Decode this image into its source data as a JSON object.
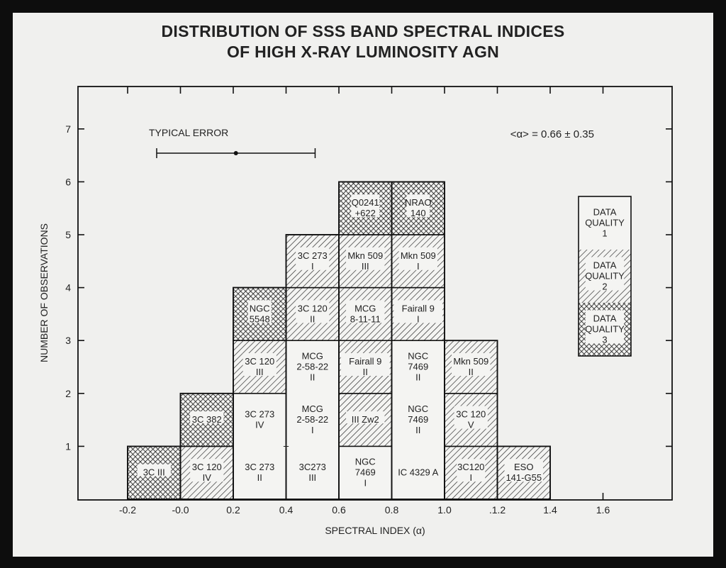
{
  "title_line1": "DISTRIBUTION OF SSS BAND SPECTRAL INDICES",
  "title_line2": "OF HIGH X-RAY LUMINOSITY AGN",
  "chart_data": {
    "type": "bar",
    "subtype": "stacked histogram of labeled observations",
    "xlabel": "SPECTRAL INDEX (α)",
    "ylabel": "NUMBER OF OBSERVATIONS",
    "xlim": [
      -0.3,
      1.95
    ],
    "ylim": [
      0,
      7.8
    ],
    "xticks": [
      "-0.2",
      "-0.0",
      "0.2",
      "0.4",
      "0.6",
      "0.8",
      "1.0",
      ".1.2",
      "1.4",
      "1.6"
    ],
    "xtick_values": [
      -0.2,
      0.0,
      0.2,
      0.4,
      0.6,
      0.8,
      1.0,
      1.2,
      1.4,
      1.6
    ],
    "yticks": [
      1,
      2,
      3,
      4,
      5,
      6,
      7
    ],
    "bin_width": 0.2,
    "grid": false,
    "annotation_mean": "<α> = 0.66 ± 0.35",
    "typical_error": {
      "label": "TYPICAL ERROR",
      "center": 0.21,
      "half_width": 0.3
    },
    "plus_marker": {
      "x": 0.4,
      "y": 1.0
    },
    "legend": {
      "placement": "right",
      "entries": [
        {
          "label": "DATA\nQUALITY\n1",
          "quality": 1
        },
        {
          "label": "DATA\nQUALITY\n2",
          "quality": 2
        },
        {
          "label": "DATA\nQUALITY\n3",
          "quality": 3
        }
      ]
    },
    "quality_fills": {
      "1": "blank",
      "2": "diagonal-hatch",
      "3": "cross-hatch"
    },
    "bins": [
      {
        "start": -0.2,
        "count": 1,
        "cells": [
          {
            "label": "3C III",
            "quality": 3
          }
        ]
      },
      {
        "start": 0.0,
        "count": 2,
        "cells": [
          {
            "label": "3C 120\nIV",
            "quality": 2
          },
          {
            "label": "3C 382",
            "quality": 3
          }
        ]
      },
      {
        "start": 0.2,
        "count": 4,
        "cells": [
          {
            "label": "3C 273\nII",
            "quality": 1
          },
          {
            "label": "3C 273\nIV",
            "quality": 1
          },
          {
            "label": "3C 120\nIII",
            "quality": 2
          },
          {
            "label": "NGC\n5548",
            "quality": 3
          }
        ]
      },
      {
        "start": 0.4,
        "count": 5,
        "cells": [
          {
            "label": "3C273\nIII",
            "quality": 1
          },
          {
            "label": "MCG\n2-58-22\nI",
            "quality": 1
          },
          {
            "label": "MCG\n2-58-22\nII",
            "quality": 1
          },
          {
            "label": "3C 120\nII",
            "quality": 2
          },
          {
            "label": "3C 273\nI",
            "quality": 2
          }
        ]
      },
      {
        "start": 0.6,
        "count": 6,
        "cells": [
          {
            "label": "NGC\n7469\nI",
            "quality": 1
          },
          {
            "label": "III Zw2",
            "quality": 2
          },
          {
            "label": "Fairall 9\nII",
            "quality": 2
          },
          {
            "label": "MCG\n8-11-11",
            "quality": 2
          },
          {
            "label": "Mkn 509\nIII",
            "quality": 2
          },
          {
            "label": "Q0241\n+622",
            "quality": 3
          }
        ]
      },
      {
        "start": 0.8,
        "count": 6,
        "cells": [
          {
            "label": "IC 4329 A",
            "quality": 1
          },
          {
            "label": "NGC\n7469\nII",
            "quality": 1
          },
          {
            "label": "NGC\n7469\nII",
            "quality": 1
          },
          {
            "label": "Fairall 9\nI",
            "quality": 2
          },
          {
            "label": "Mkn 509\nI",
            "quality": 2
          },
          {
            "label": "NRAO\n140",
            "quality": 3
          }
        ]
      },
      {
        "start": 1.0,
        "count": 3,
        "cells": [
          {
            "label": "3C120\nI",
            "quality": 2
          },
          {
            "label": "3C 120\nV",
            "quality": 2
          },
          {
            "label": "Mkn 509\nII",
            "quality": 2
          }
        ]
      },
      {
        "start": 1.2,
        "count": 1,
        "cells": [
          {
            "label": "ESO\n141-G55",
            "quality": 2
          }
        ]
      }
    ]
  }
}
